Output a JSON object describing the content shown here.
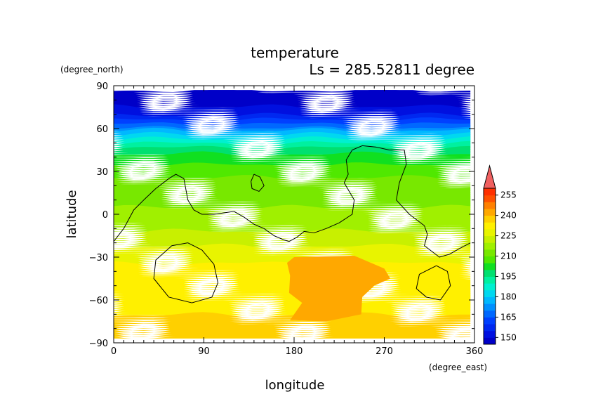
{
  "chart_data": {
    "type": "heatmap",
    "title": "temperature",
    "subtitle": "Ls = 285.52811 degree",
    "xlabel": "longitude",
    "ylabel": "latitude",
    "x_units": "(degree_east)",
    "y_units": "(degree_north)",
    "xlim": [
      0,
      360
    ],
    "ylim": [
      -90,
      90
    ],
    "x_ticks": [
      "0",
      "90",
      "180",
      "270",
      "360"
    ],
    "y_ticks": [
      "90",
      "60",
      "30",
      "0",
      "−30",
      "−60",
      "−90"
    ],
    "x_tick_values": [
      0,
      90,
      180,
      270,
      360
    ],
    "y_tick_values": [
      90,
      60,
      30,
      0,
      -30,
      -60,
      -90
    ],
    "field_extent": {
      "lon": [
        0,
        356
      ],
      "lat": [
        -87,
        87
      ]
    },
    "colorbar": {
      "levels": [
        145,
        150,
        155,
        160,
        165,
        170,
        175,
        180,
        185,
        190,
        195,
        200,
        205,
        210,
        215,
        220,
        225,
        230,
        235,
        240,
        245,
        250,
        255,
        260
      ],
      "tick_labels": [
        "255",
        "240",
        "225",
        "210",
        "195",
        "180",
        "165",
        "150"
      ],
      "tick_values": [
        255,
        240,
        225,
        210,
        195,
        180,
        165,
        150
      ],
      "colors": [
        "#0000C8",
        "#0010E0",
        "#0028F0",
        "#0040FF",
        "#0068FF",
        "#0090FF",
        "#00B8FF",
        "#00D8F0",
        "#00F0D0",
        "#00F0A0",
        "#00E070",
        "#10E020",
        "#50E800",
        "#78E800",
        "#A0F000",
        "#C8F000",
        "#E8F400",
        "#FFF000",
        "#FFD000",
        "#FFA800",
        "#FF8000",
        "#FF5000",
        "#FF3000",
        "#FF6060"
      ],
      "extend_top_color": "#F06060"
    },
    "lat_profile": [
      {
        "lat": 87,
        "T": 148
      },
      {
        "lat": 75,
        "T": 150
      },
      {
        "lat": 68,
        "T": 156
      },
      {
        "lat": 63,
        "T": 165
      },
      {
        "lat": 57,
        "T": 178
      },
      {
        "lat": 50,
        "T": 190
      },
      {
        "lat": 42,
        "T": 200
      },
      {
        "lat": 35,
        "T": 205
      },
      {
        "lat": 25,
        "T": 210
      },
      {
        "lat": 15,
        "T": 212
      },
      {
        "lat": 5,
        "T": 215
      },
      {
        "lat": -5,
        "T": 217
      },
      {
        "lat": -15,
        "T": 221
      },
      {
        "lat": -25,
        "T": 226
      },
      {
        "lat": -35,
        "T": 230
      },
      {
        "lat": -45,
        "T": 232
      },
      {
        "lat": -55,
        "T": 232
      },
      {
        "lat": -65,
        "T": 232
      },
      {
        "lat": -75,
        "T": 237
      },
      {
        "lat": -87,
        "T": 238
      }
    ],
    "warm_region_T": 242,
    "warm_region": [
      [
        180,
        -30
      ],
      [
        240,
        -29
      ],
      [
        270,
        -38
      ],
      [
        276,
        -45
      ],
      [
        260,
        -50
      ],
      [
        248,
        -58
      ],
      [
        247,
        -70
      ],
      [
        212,
        -75
      ],
      [
        176,
        -74
      ],
      [
        188,
        -62
      ],
      [
        175,
        -55
      ],
      [
        176,
        -43
      ],
      [
        173,
        -34
      ]
    ],
    "contours": [
      [
        [
          0,
          -19
        ],
        [
          10,
          -10
        ],
        [
          20,
          3
        ],
        [
          30,
          10
        ],
        [
          42,
          18
        ],
        [
          55,
          25
        ],
        [
          62,
          28
        ],
        [
          70,
          25
        ],
        [
          74,
          10
        ],
        [
          80,
          3
        ],
        [
          88,
          0
        ],
        [
          100,
          0
        ],
        [
          110,
          1
        ],
        [
          120,
          2
        ],
        [
          130,
          -2
        ],
        [
          140,
          -7
        ],
        [
          150,
          -10
        ],
        [
          160,
          -15
        ],
        [
          170,
          -18
        ],
        [
          175,
          -19
        ],
        [
          183,
          -16
        ],
        [
          190,
          -12
        ],
        [
          200,
          -13
        ],
        [
          212,
          -10
        ],
        [
          225,
          -6
        ],
        [
          238,
          0
        ],
        [
          240,
          10
        ],
        [
          230,
          22
        ],
        [
          234,
          28
        ],
        [
          232,
          38
        ],
        [
          238,
          45
        ],
        [
          248,
          48
        ],
        [
          262,
          47
        ],
        [
          275,
          45
        ],
        [
          290,
          45
        ],
        [
          292,
          35
        ],
        [
          285,
          22
        ],
        [
          282,
          10
        ],
        [
          295,
          0
        ],
        [
          310,
          -8
        ],
        [
          313,
          -14
        ],
        [
          310,
          -22
        ],
        [
          325,
          -30
        ],
        [
          335,
          -28
        ],
        [
          345,
          -24
        ],
        [
          356,
          -20
        ]
      ],
      [
        [
          140,
          28
        ],
        [
          146,
          26
        ],
        [
          150,
          20
        ],
        [
          145,
          16
        ],
        [
          138,
          18
        ],
        [
          137,
          23
        ],
        [
          140,
          28
        ]
      ],
      [
        [
          74,
          -20
        ],
        [
          88,
          -25
        ],
        [
          100,
          -35
        ],
        [
          104,
          -48
        ],
        [
          98,
          -58
        ],
        [
          78,
          -62
        ],
        [
          55,
          -58
        ],
        [
          40,
          -45
        ],
        [
          42,
          -32
        ],
        [
          58,
          -22
        ],
        [
          74,
          -20
        ]
      ],
      [
        [
          322,
          -36
        ],
        [
          333,
          -40
        ],
        [
          336,
          -50
        ],
        [
          326,
          -60
        ],
        [
          312,
          -58
        ],
        [
          302,
          -52
        ],
        [
          305,
          -42
        ],
        [
          322,
          -36
        ]
      ]
    ]
  }
}
